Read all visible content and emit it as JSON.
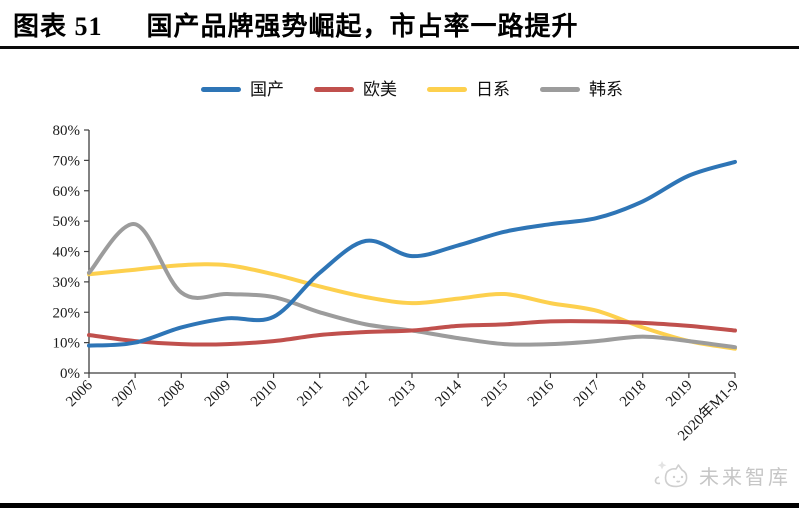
{
  "header": {
    "figure_label": "图表 51",
    "title": "国产品牌强势崛起，市占率一路提升"
  },
  "watermark": {
    "brand": "未来智库"
  },
  "chart_data": {
    "type": "line",
    "title": "图表51 国产品牌强势崛起，市占率一路提升",
    "categories": [
      "2006",
      "2007",
      "2008",
      "2009",
      "2010",
      "2011",
      "2012",
      "2013",
      "2014",
      "2015",
      "2016",
      "2017",
      "2018",
      "2019",
      "2020年M1-9"
    ],
    "series": [
      {
        "name": "国产",
        "color": "#2E75B6",
        "values": [
          9,
          10,
          15,
          18,
          18.5,
          33,
          43.5,
          38.5,
          42,
          46.5,
          49,
          51,
          56.5,
          65,
          69.5
        ]
      },
      {
        "name": "欧美",
        "color": "#C0504D",
        "values": [
          12.5,
          10.5,
          9.5,
          9.5,
          10.5,
          12.5,
          13.5,
          14,
          15.5,
          16,
          17,
          17,
          16.5,
          15.5,
          14
        ]
      },
      {
        "name": "日系",
        "color": "#FDD04E",
        "values": [
          32.5,
          34,
          35.5,
          35.5,
          32.5,
          28.5,
          25,
          23,
          24.5,
          26,
          23,
          20.5,
          15,
          10.5,
          8
        ]
      },
      {
        "name": "韩系",
        "color": "#9C9C9C",
        "values": [
          33,
          49,
          26.5,
          26,
          25,
          20,
          16,
          14,
          11.5,
          9.5,
          9.5,
          10.5,
          12,
          10.5,
          8.5
        ]
      }
    ],
    "xlabel": "",
    "ylabel": "",
    "ylim": [
      0,
      80
    ],
    "ytick_step": 10,
    "ytick_suffix": "%",
    "legend_position": "top-center",
    "grid": false,
    "smooth": true
  }
}
